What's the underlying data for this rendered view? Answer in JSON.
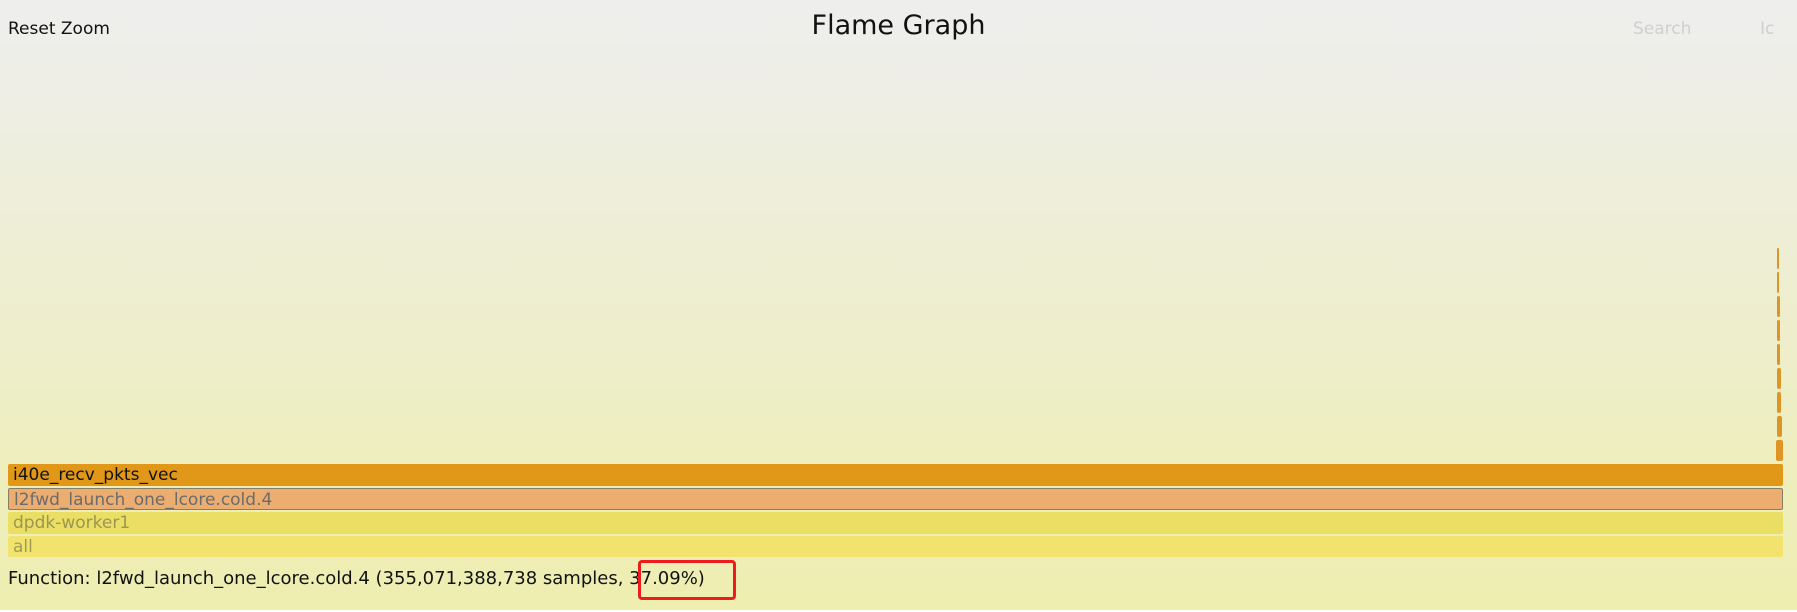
{
  "toolbar": {
    "reset_zoom_label": "Reset Zoom",
    "title": "Flame Graph",
    "search_label": "Search",
    "ignore_case_label": "Ic"
  },
  "frames": [
    {
      "label": "i40e_recv_pkts_vec",
      "color": "#e19818"
    },
    {
      "label": "l2fwd_launch_one_lcore.cold.4",
      "color": "#ecad70"
    },
    {
      "label": "dpdk-worker1",
      "color": "#eadf64"
    },
    {
      "label": "all",
      "color": "#f2e36e"
    }
  ],
  "status": {
    "details_prefix": "Function: l2fwd_launch_one_lcore.cold.4 (355,071,388,738 samples, ",
    "percent": "37.09%)"
  },
  "colors": {
    "highlight_box": "#ee1c1c",
    "background_top": "#eeeeee",
    "background_bottom": "#eeeeb0"
  }
}
